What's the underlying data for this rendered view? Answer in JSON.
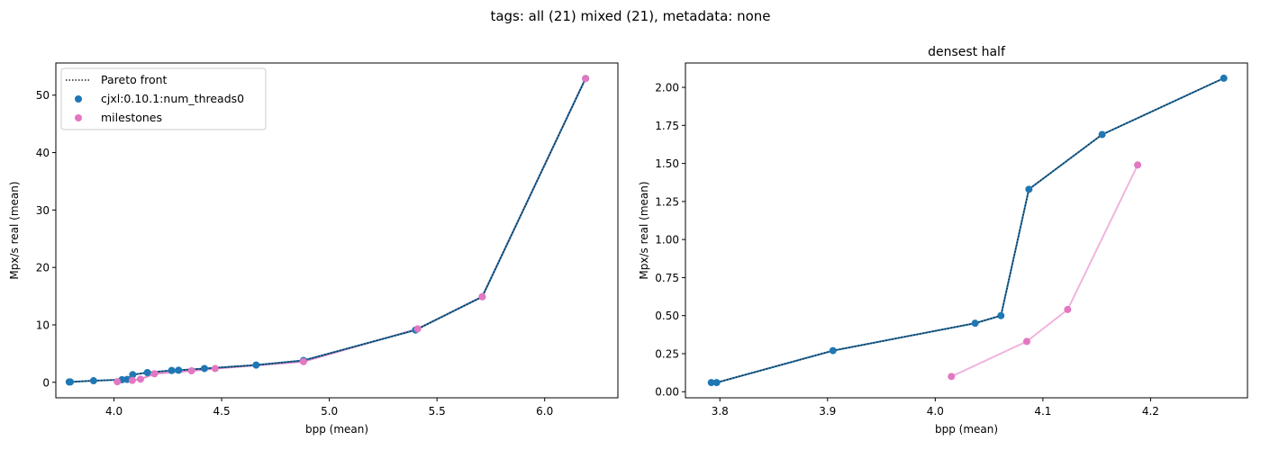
{
  "suptitle": "tags: all (21) mixed (21), metadata: none",
  "colors": {
    "series1": "#1f77b4",
    "milestones": "#e377c2",
    "pareto": "#222222",
    "axis": "#000000"
  },
  "chart_data": [
    {
      "type": "scatter",
      "title": "",
      "xlabel": "bpp (mean)",
      "ylabel": "Mpx/s real (mean)",
      "xlim": [
        3.73,
        6.34
      ],
      "ylim": [
        -2.7,
        55.6
      ],
      "xticks": [
        4.0,
        4.5,
        5.0,
        5.5,
        6.0
      ],
      "xtick_labels": [
        "4.0",
        "4.5",
        "5.0",
        "5.5",
        "6.0"
      ],
      "yticks": [
        0,
        10,
        20,
        30,
        40,
        50
      ],
      "ytick_labels": [
        "0",
        "10",
        "20",
        "30",
        "40",
        "50"
      ],
      "legend": {
        "placement": "upper-left",
        "entries": [
          "Pareto front",
          "cjxl:0.10.1:num_threads0",
          "milestones"
        ]
      },
      "series": [
        {
          "name": "Pareto front",
          "style": "dotted-line",
          "points": [
            [
              3.792,
              0.06
            ],
            [
              3.797,
              0.06
            ],
            [
              3.905,
              0.27
            ],
            [
              4.037,
              0.45
            ],
            [
              4.061,
              0.5
            ],
            [
              4.087,
              1.33
            ],
            [
              4.155,
              1.69
            ],
            [
              4.268,
              2.06
            ],
            [
              4.3,
              2.1
            ],
            [
              4.42,
              2.4
            ],
            [
              4.66,
              3.0
            ],
            [
              4.88,
              3.8
            ],
            [
              5.4,
              9.1
            ],
            [
              5.71,
              14.9
            ],
            [
              6.19,
              52.9
            ]
          ]
        },
        {
          "name": "cjxl:0.10.1:num_threads0",
          "style": "markers-line",
          "points": [
            [
              3.792,
              0.06
            ],
            [
              3.797,
              0.06
            ],
            [
              3.905,
              0.27
            ],
            [
              4.037,
              0.45
            ],
            [
              4.061,
              0.5
            ],
            [
              4.087,
              1.33
            ],
            [
              4.155,
              1.69
            ],
            [
              4.268,
              2.06
            ],
            [
              4.3,
              2.1
            ],
            [
              4.42,
              2.4
            ],
            [
              4.66,
              3.0
            ],
            [
              4.88,
              3.8
            ],
            [
              5.4,
              9.1
            ],
            [
              5.71,
              14.9
            ],
            [
              6.19,
              52.9
            ]
          ]
        },
        {
          "name": "milestones",
          "style": "markers-line",
          "points": [
            [
              4.015,
              0.1
            ],
            [
              4.085,
              0.33
            ],
            [
              4.123,
              0.54
            ],
            [
              4.188,
              1.49
            ],
            [
              4.36,
              2.0
            ],
            [
              4.47,
              2.4
            ],
            [
              4.88,
              3.6
            ],
            [
              5.41,
              9.3
            ],
            [
              5.71,
              14.9
            ],
            [
              6.19,
              52.9
            ]
          ]
        }
      ]
    },
    {
      "type": "scatter",
      "title": "densest half",
      "xlabel": "bpp (mean)",
      "ylabel": "Mpx/s real (mean)",
      "xlim": [
        3.768,
        4.29
      ],
      "ylim": [
        -0.04,
        2.16
      ],
      "xticks": [
        3.8,
        3.9,
        4.0,
        4.1,
        4.2
      ],
      "xtick_labels": [
        "3.8",
        "3.9",
        "4.0",
        "4.1",
        "4.2"
      ],
      "yticks": [
        0.0,
        0.25,
        0.5,
        0.75,
        1.0,
        1.25,
        1.5,
        1.75,
        2.0
      ],
      "ytick_labels": [
        "0.00",
        "0.25",
        "0.50",
        "0.75",
        "1.00",
        "1.25",
        "1.50",
        "1.75",
        "2.00"
      ],
      "series": [
        {
          "name": "Pareto front",
          "style": "dotted-line",
          "points": [
            [
              3.792,
              0.06
            ],
            [
              3.797,
              0.06
            ],
            [
              3.905,
              0.27
            ],
            [
              4.037,
              0.45
            ],
            [
              4.061,
              0.5
            ],
            [
              4.087,
              1.33
            ],
            [
              4.155,
              1.69
            ],
            [
              4.268,
              2.06
            ]
          ]
        },
        {
          "name": "cjxl:0.10.1:num_threads0",
          "style": "markers-line",
          "points": [
            [
              3.792,
              0.06
            ],
            [
              3.797,
              0.06
            ],
            [
              3.905,
              0.27
            ],
            [
              4.037,
              0.45
            ],
            [
              4.061,
              0.5
            ],
            [
              4.087,
              1.33
            ],
            [
              4.155,
              1.69
            ],
            [
              4.268,
              2.06
            ]
          ]
        },
        {
          "name": "milestones",
          "style": "markers-line-faded",
          "points": [
            [
              4.015,
              0.1
            ],
            [
              4.085,
              0.33
            ],
            [
              4.123,
              0.54
            ],
            [
              4.188,
              1.49
            ]
          ]
        }
      ]
    }
  ]
}
